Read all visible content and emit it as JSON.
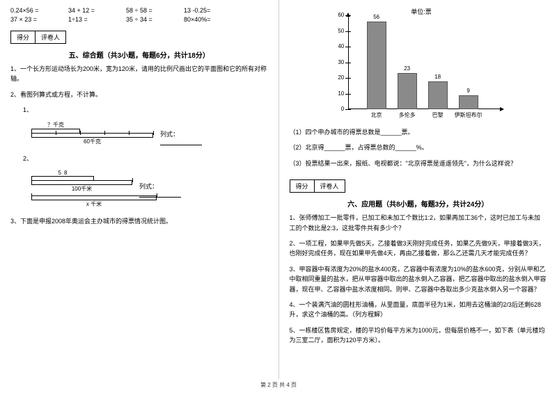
{
  "left": {
    "math_rows": [
      [
        "0.24×56 =",
        "34 + 12 =",
        "58 ÷ 58 =",
        "13 -0.25="
      ],
      [
        "37 × 23 =",
        "1÷13 =",
        "35 ÷ 34 =",
        "80×40%="
      ]
    ],
    "score_labels": [
      "得分",
      "评卷人"
    ],
    "section5_title": "五、综合题（共3小题，每题6分，共计18分）",
    "q1": "1、一个长方形运动场长为200米，宽为120米，请用的比例尺画出它的平面图和它的所有对称轴。",
    "q2": "2、看图列算式或方程，不计算。",
    "q2_1": "1、",
    "d1_top": "？千克",
    "d1_bottom": "60千克",
    "d1_eq": "列式：",
    "q2_2": "2、",
    "d2_frac_n": "5",
    "d2_frac_d": "8",
    "d2_mid": "100千米",
    "d2_bottom": "x 千米",
    "d2_eq": "列式：",
    "q3": "3、下面是申报2008年奥运会主办城市的得票情况统计图。"
  },
  "right": {
    "chart": {
      "unit": "单位:票",
      "y_max": 60,
      "y_step": 10,
      "categories": [
        "北京",
        "多伦多",
        "巴黎",
        "伊斯坦布尔"
      ],
      "values": [
        56,
        23,
        18,
        9
      ],
      "bar_color": "#8a8a8a",
      "axis_color": "#000000",
      "label_fontsize": 8
    },
    "cq1": "（1）四个申办城市的得票总数是______票。",
    "cq2": "（2）北京得______票，占得票总数的______%。",
    "cq3": "（3）投票结果一出来，报纸、电视都说：\"北京得票是遥遥领先\"，为什么这样说？",
    "score_labels": [
      "得分",
      "评卷人"
    ],
    "section6_title": "六、应用题（共8小题，每题3分，共计24分）",
    "aq1": "1、张师傅加工一批零件，已加工和未加工个数比1:2，如果再加工36个，这时已加工与未加工的个数比是2:3，这批零件共有多少个？",
    "aq2": "2、一项工程，如果甲先做5天，乙接着做3天刚好完成任务，如果乙先做9天，甲接着做3天，也刚好完成任务，现在如果甲先做4天，再由乙接着做，那么乙还需几天才能完成任务？",
    "aq3": "3、甲容器中有浓度为20%的盐水400克，乙容器中有浓度为10%的盐水600克，分别从甲和乙中取相同重量的盐水，把从甲容器中取出的盐水倒入乙容器，把乙容器中取出的盐水倒入甲容器，现在甲、乙容器中盐水浓度相同。则甲、乙容器中各取出多少克盐水倒入另一个容器？",
    "aq4": "4、一个装满汽油的圆柱形油桶，从里面量，底面半径为1米，如用去这桶油的2/3后还剩628升，求这个油桶的高。（列方程解）",
    "aq5": "5、一栋楼区售房规定，楼的平均价每平方米为1000元，但每层价格不一，如下表（单元楼均为三室二厅，面积为120平方米）。"
  },
  "footer": "第 2 页 共 4 页"
}
